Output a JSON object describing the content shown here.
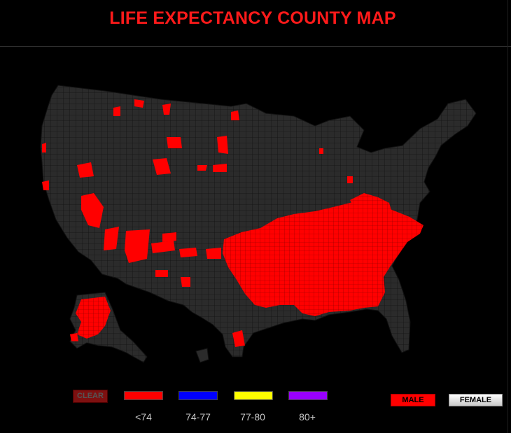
{
  "title": "LIFE EXPECTANCY COUNTY MAP",
  "map": {
    "base_color": "#2b2b2b",
    "border_color": "#111111",
    "highlight_color": "#ff0000",
    "highlighted_range": "<74"
  },
  "legend": {
    "clear_label": "CLEAR",
    "items": [
      {
        "label": "<74",
        "color": "#ff0000"
      },
      {
        "label": "74-77",
        "color": "#0000ff"
      },
      {
        "label": "77-80",
        "color": "#ffff00"
      },
      {
        "label": "80+",
        "color": "#9900ff"
      }
    ]
  },
  "sex_toggle": {
    "male_label": "MALE",
    "female_label": "FEMALE",
    "selected": "MALE"
  }
}
